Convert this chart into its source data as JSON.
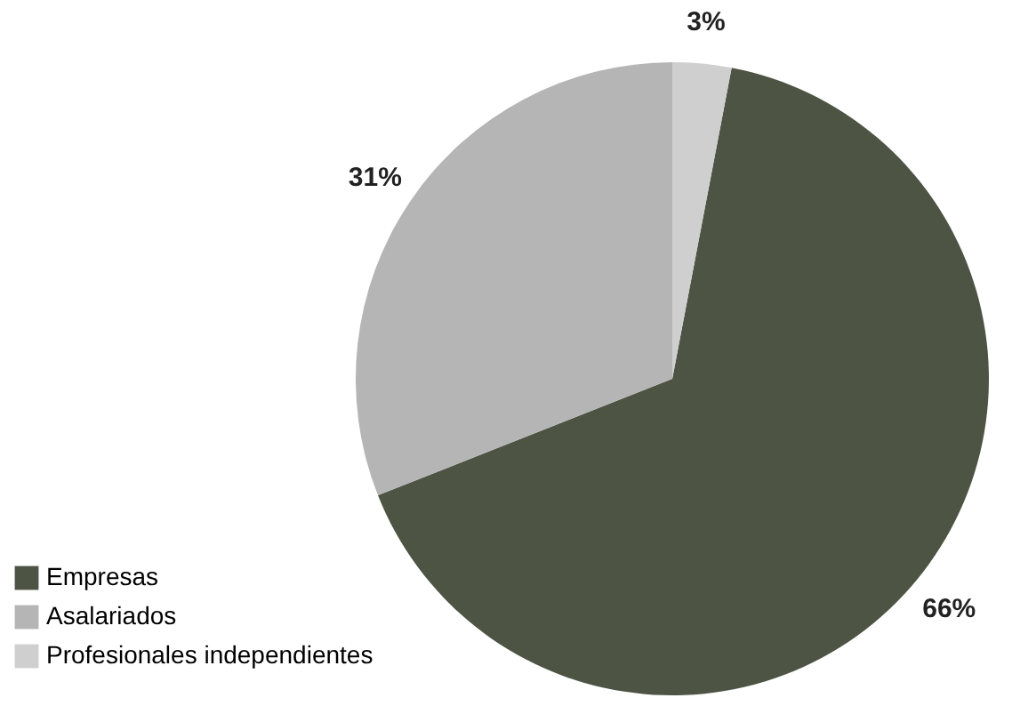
{
  "chart_data": {
    "type": "pie",
    "categories": [
      "Empresas",
      "Asalariados",
      "Profesionales independientes"
    ],
    "values": [
      66,
      31,
      3
    ],
    "colors": [
      "#4d5443",
      "#b5b5b5",
      "#cfcfcf"
    ],
    "value_labels": [
      "66%",
      "31%",
      "3%"
    ],
    "legend": "bottom left"
  }
}
